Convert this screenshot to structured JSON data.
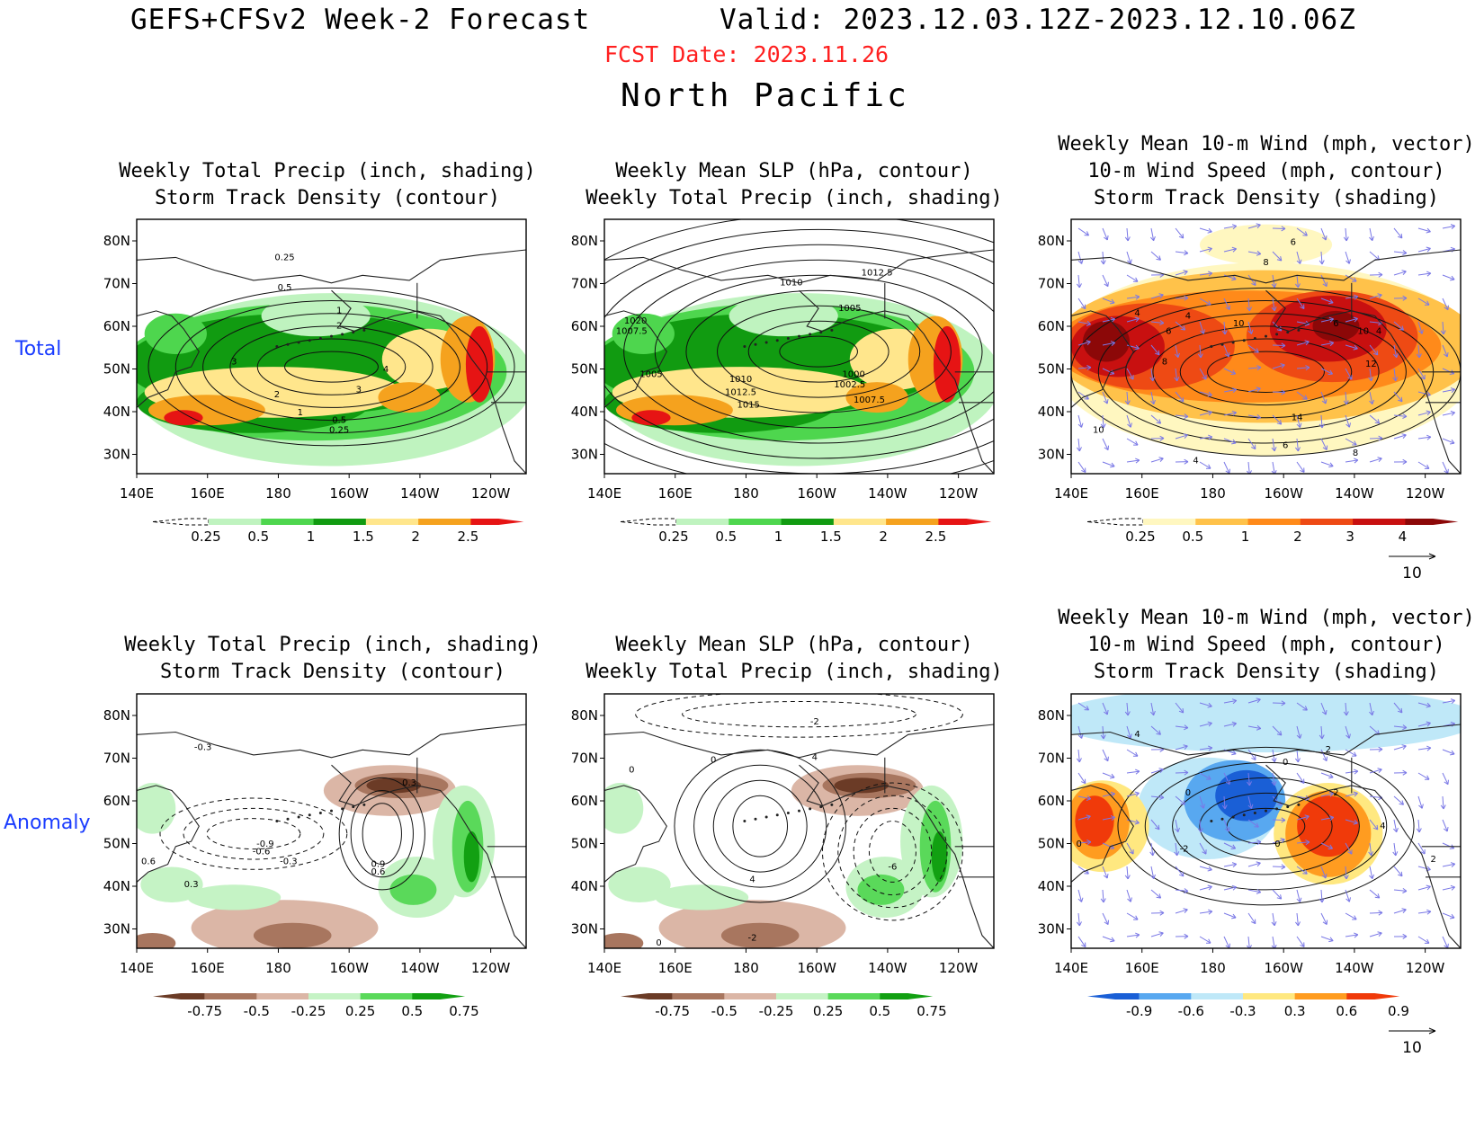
{
  "header": {
    "title": "GEFS+CFSv2 Week-2 Forecast",
    "valid": "Valid: 2023.12.03.12Z-2023.12.10.06Z",
    "fcst_date": "FCST Date: 2023.11.26",
    "region": "North Pacific"
  },
  "row_labels": {
    "total": "Total",
    "anomaly": "Anomaly"
  },
  "panel_titles": {
    "precip_storm": [
      "Weekly Total Precip (inch, shading)",
      "Storm Track Density (contour)"
    ],
    "slp_precip": [
      "Weekly Mean SLP (hPa, contour)",
      "Weekly Total Precip (inch, shading)"
    ],
    "wind_storm": [
      "Weekly Mean 10-m Wind (mph, vector)",
      "10-m Wind Speed (mph, contour)",
      "Storm Track Density (shading)"
    ]
  },
  "axes": {
    "lon_labels": [
      "140E",
      "160E",
      "180",
      "160W",
      "140W",
      "120W"
    ],
    "lat_labels": [
      "80N",
      "70N",
      "60N",
      "50N",
      "40N",
      "30N"
    ]
  },
  "colorbars": {
    "precip_total": [
      "0.25",
      "0.5",
      "1",
      "1.5",
      "2",
      "2.5"
    ],
    "storm_total": [
      "0.25",
      "0.5",
      "1",
      "2",
      "3",
      "4"
    ],
    "precip_anom": [
      "-0.75",
      "-0.5",
      "-0.25",
      "0.25",
      "0.5",
      "0.75"
    ],
    "storm_anom": [
      "-0.9",
      "-0.6",
      "-0.3",
      "0.3",
      "0.6",
      "0.9"
    ]
  },
  "vector_ref": "10",
  "contour_labels": {
    "total_precip": [
      "0.25",
      "0.5",
      "1",
      "2",
      "3",
      "4",
      "3",
      "2",
      "1",
      "0.5",
      "0.25"
    ],
    "total_slp": [
      "1010",
      "1012.5",
      "1005",
      "1020",
      "1007.5",
      "1005",
      "1010",
      "1012.5",
      "1015",
      "1000",
      "1002.5",
      "1007.5"
    ],
    "total_wind": [
      "6",
      "8",
      "4",
      "4",
      "6",
      "8",
      "10",
      "6",
      "10",
      "4",
      "12",
      "14",
      "6",
      "10",
      "4",
      "8"
    ],
    "anom_precip": [
      "-0.3",
      "-0.9",
      "-0.6",
      "-0.3",
      "0.6",
      "0.3",
      "0.3",
      "0.9",
      "0.6"
    ],
    "anom_slp": [
      "-2",
      "4",
      "0",
      "0",
      "4",
      "-6",
      "-2",
      "0"
    ],
    "anom_wind": [
      "4",
      "2",
      "0",
      "0",
      "-2",
      "2",
      "4",
      "0",
      "0",
      "2"
    ]
  },
  "colors": {
    "precip": [
      "#bff3bf",
      "#4ed64e",
      "#119b11",
      "#ffe68c",
      "#f5a21e",
      "#e61414"
    ],
    "storm": [
      "#fff7c0",
      "#ffc24a",
      "#ff8a1a",
      "#ee4a14",
      "#c81010",
      "#8c0808"
    ],
    "precip_anom": [
      "#6b3b26",
      "#a8765f",
      "#dbb6a6",
      "#c5f3c5",
      "#5ad95a",
      "#12a012"
    ],
    "storm_anom": [
      "#1a5fd6",
      "#58a8f0",
      "#bfe8f8",
      "#ffe880",
      "#ff9c20",
      "#f03a0a"
    ],
    "vector": "#7a78e6",
    "header_red": "#ff2020",
    "row_label_blue": "#1a3cff"
  }
}
